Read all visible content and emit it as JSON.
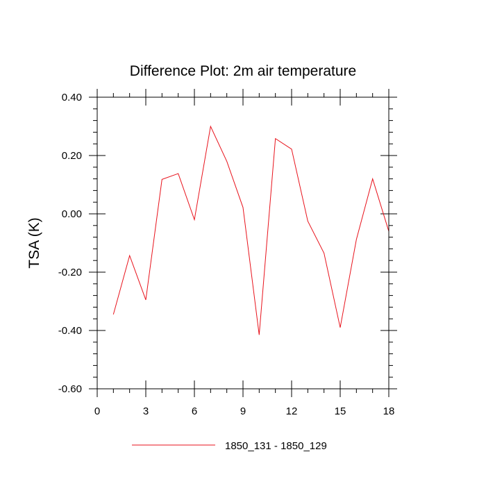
{
  "chart_data": {
    "type": "line",
    "title": "Difference Plot: 2m air temperature",
    "xlabel": "",
    "ylabel": "TSA  (K)",
    "xlim": [
      0,
      18
    ],
    "ylim": [
      -0.6,
      0.4
    ],
    "x_ticks": [
      0,
      3,
      6,
      9,
      12,
      15,
      18
    ],
    "x_tick_labels": [
      "0",
      "3",
      "6",
      "9",
      "12",
      "15",
      "18"
    ],
    "y_ticks": [
      -0.6,
      -0.4,
      -0.2,
      0.0,
      0.2,
      0.4
    ],
    "y_tick_labels": [
      "-0.60",
      "-0.40",
      "-0.20",
      "0.00",
      "0.20",
      "0.40"
    ],
    "grid": false,
    "legend_position": "bottom",
    "series": [
      {
        "name": "1850_131 - 1850_129",
        "color": "#e8121b",
        "x": [
          1,
          2,
          3,
          4,
          5,
          6,
          7,
          8,
          9,
          10,
          11,
          12,
          13,
          14,
          15,
          16,
          17,
          18
        ],
        "y": [
          -0.345,
          -0.143,
          -0.295,
          0.118,
          0.138,
          -0.02,
          0.3,
          0.18,
          0.022,
          -0.415,
          0.258,
          0.222,
          -0.025,
          -0.135,
          -0.39,
          -0.088,
          0.12,
          -0.06
        ]
      }
    ]
  }
}
